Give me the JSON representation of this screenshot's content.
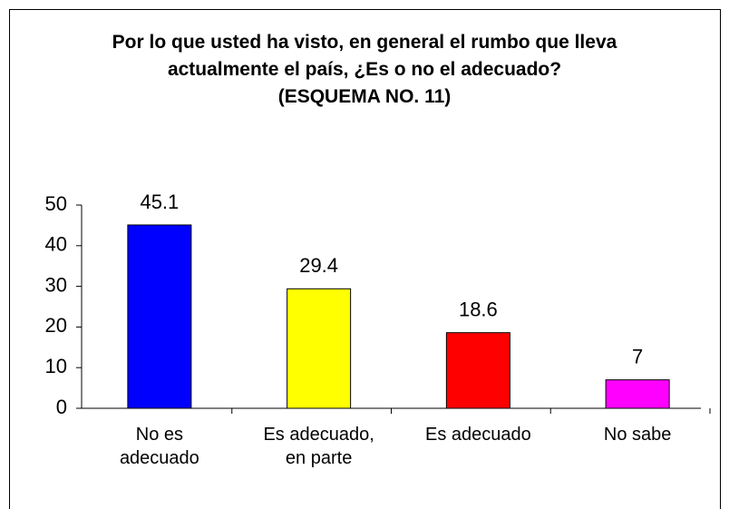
{
  "chart_data": {
    "type": "bar",
    "title": "Por lo que usted ha visto, en general el rumbo que lleva actualmente el país, ¿Es o no el adecuado?",
    "subtitle": "(ESQUEMA NO. 11)",
    "categories": [
      "No es adecuado",
      "Es adecuado, en parte",
      "Es adecuado",
      "No sabe"
    ],
    "values": [
      45.1,
      29.4,
      18.6,
      7
    ],
    "colors": [
      "#0000ff",
      "#ffff00",
      "#ff0000",
      "#ff00ff"
    ],
    "ylim": [
      0,
      50
    ],
    "yticks": [
      0,
      10,
      20,
      30,
      40,
      50
    ]
  }
}
